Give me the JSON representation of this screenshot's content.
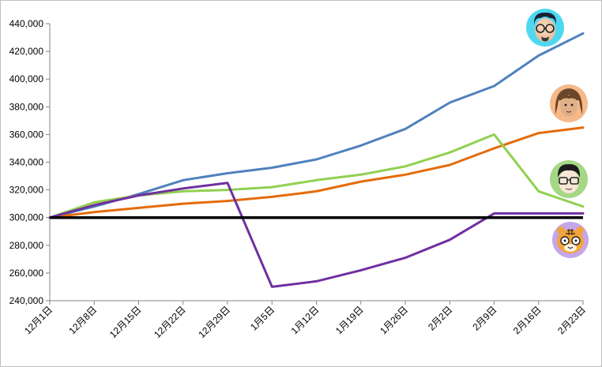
{
  "chart_data": {
    "type": "line",
    "title": "",
    "xlabel": "",
    "ylabel": "",
    "ylim": [
      240000,
      440000
    ],
    "yticks": [
      240000,
      260000,
      280000,
      300000,
      320000,
      340000,
      360000,
      380000,
      400000,
      420000,
      440000
    ],
    "ytick_labels": [
      "240,000",
      "260,000",
      "280,000",
      "300,000",
      "320,000",
      "340,000",
      "360,000",
      "380,000",
      "400,000",
      "420,000",
      "440,000"
    ],
    "categories": [
      "12月1日",
      "12月8日",
      "12月15日",
      "12月22日",
      "12月29日",
      "1月5日",
      "1月12日",
      "1月19日",
      "1月26日",
      "2月2日",
      "2月9日",
      "2月16日",
      "2月23日"
    ],
    "x_label_rotation_deg": -45,
    "grid": false,
    "reference_line": {
      "value": 300000,
      "color": "#000000"
    },
    "series": [
      {
        "color": "#4f81bd",
        "icon": "avatar-glasses-blue-bg",
        "values": [
          300000,
          308000,
          317000,
          327000,
          332000,
          336000,
          342000,
          352000,
          364000,
          383000,
          395000,
          417000,
          433000
        ]
      },
      {
        "color": "#e46c0a",
        "icon": "avatar-brown-hair-orange-bg",
        "values": [
          300000,
          304000,
          307000,
          310000,
          312000,
          315000,
          319000,
          326000,
          331000,
          338000,
          350000,
          361000,
          365000
        ]
      },
      {
        "color": "#92d050",
        "icon": "avatar-glasses-green-bg",
        "values": [
          300000,
          311000,
          316000,
          319000,
          320000,
          322000,
          327000,
          331000,
          337000,
          347000,
          360000,
          319000,
          308000
        ]
      },
      {
        "color": "#7030a0",
        "icon": "avatar-tiger-purple-bg",
        "values": [
          300000,
          309000,
          316000,
          321000,
          325000,
          250000,
          254000,
          262000,
          271000,
          284000,
          303000,
          303000,
          303000
        ]
      }
    ]
  }
}
